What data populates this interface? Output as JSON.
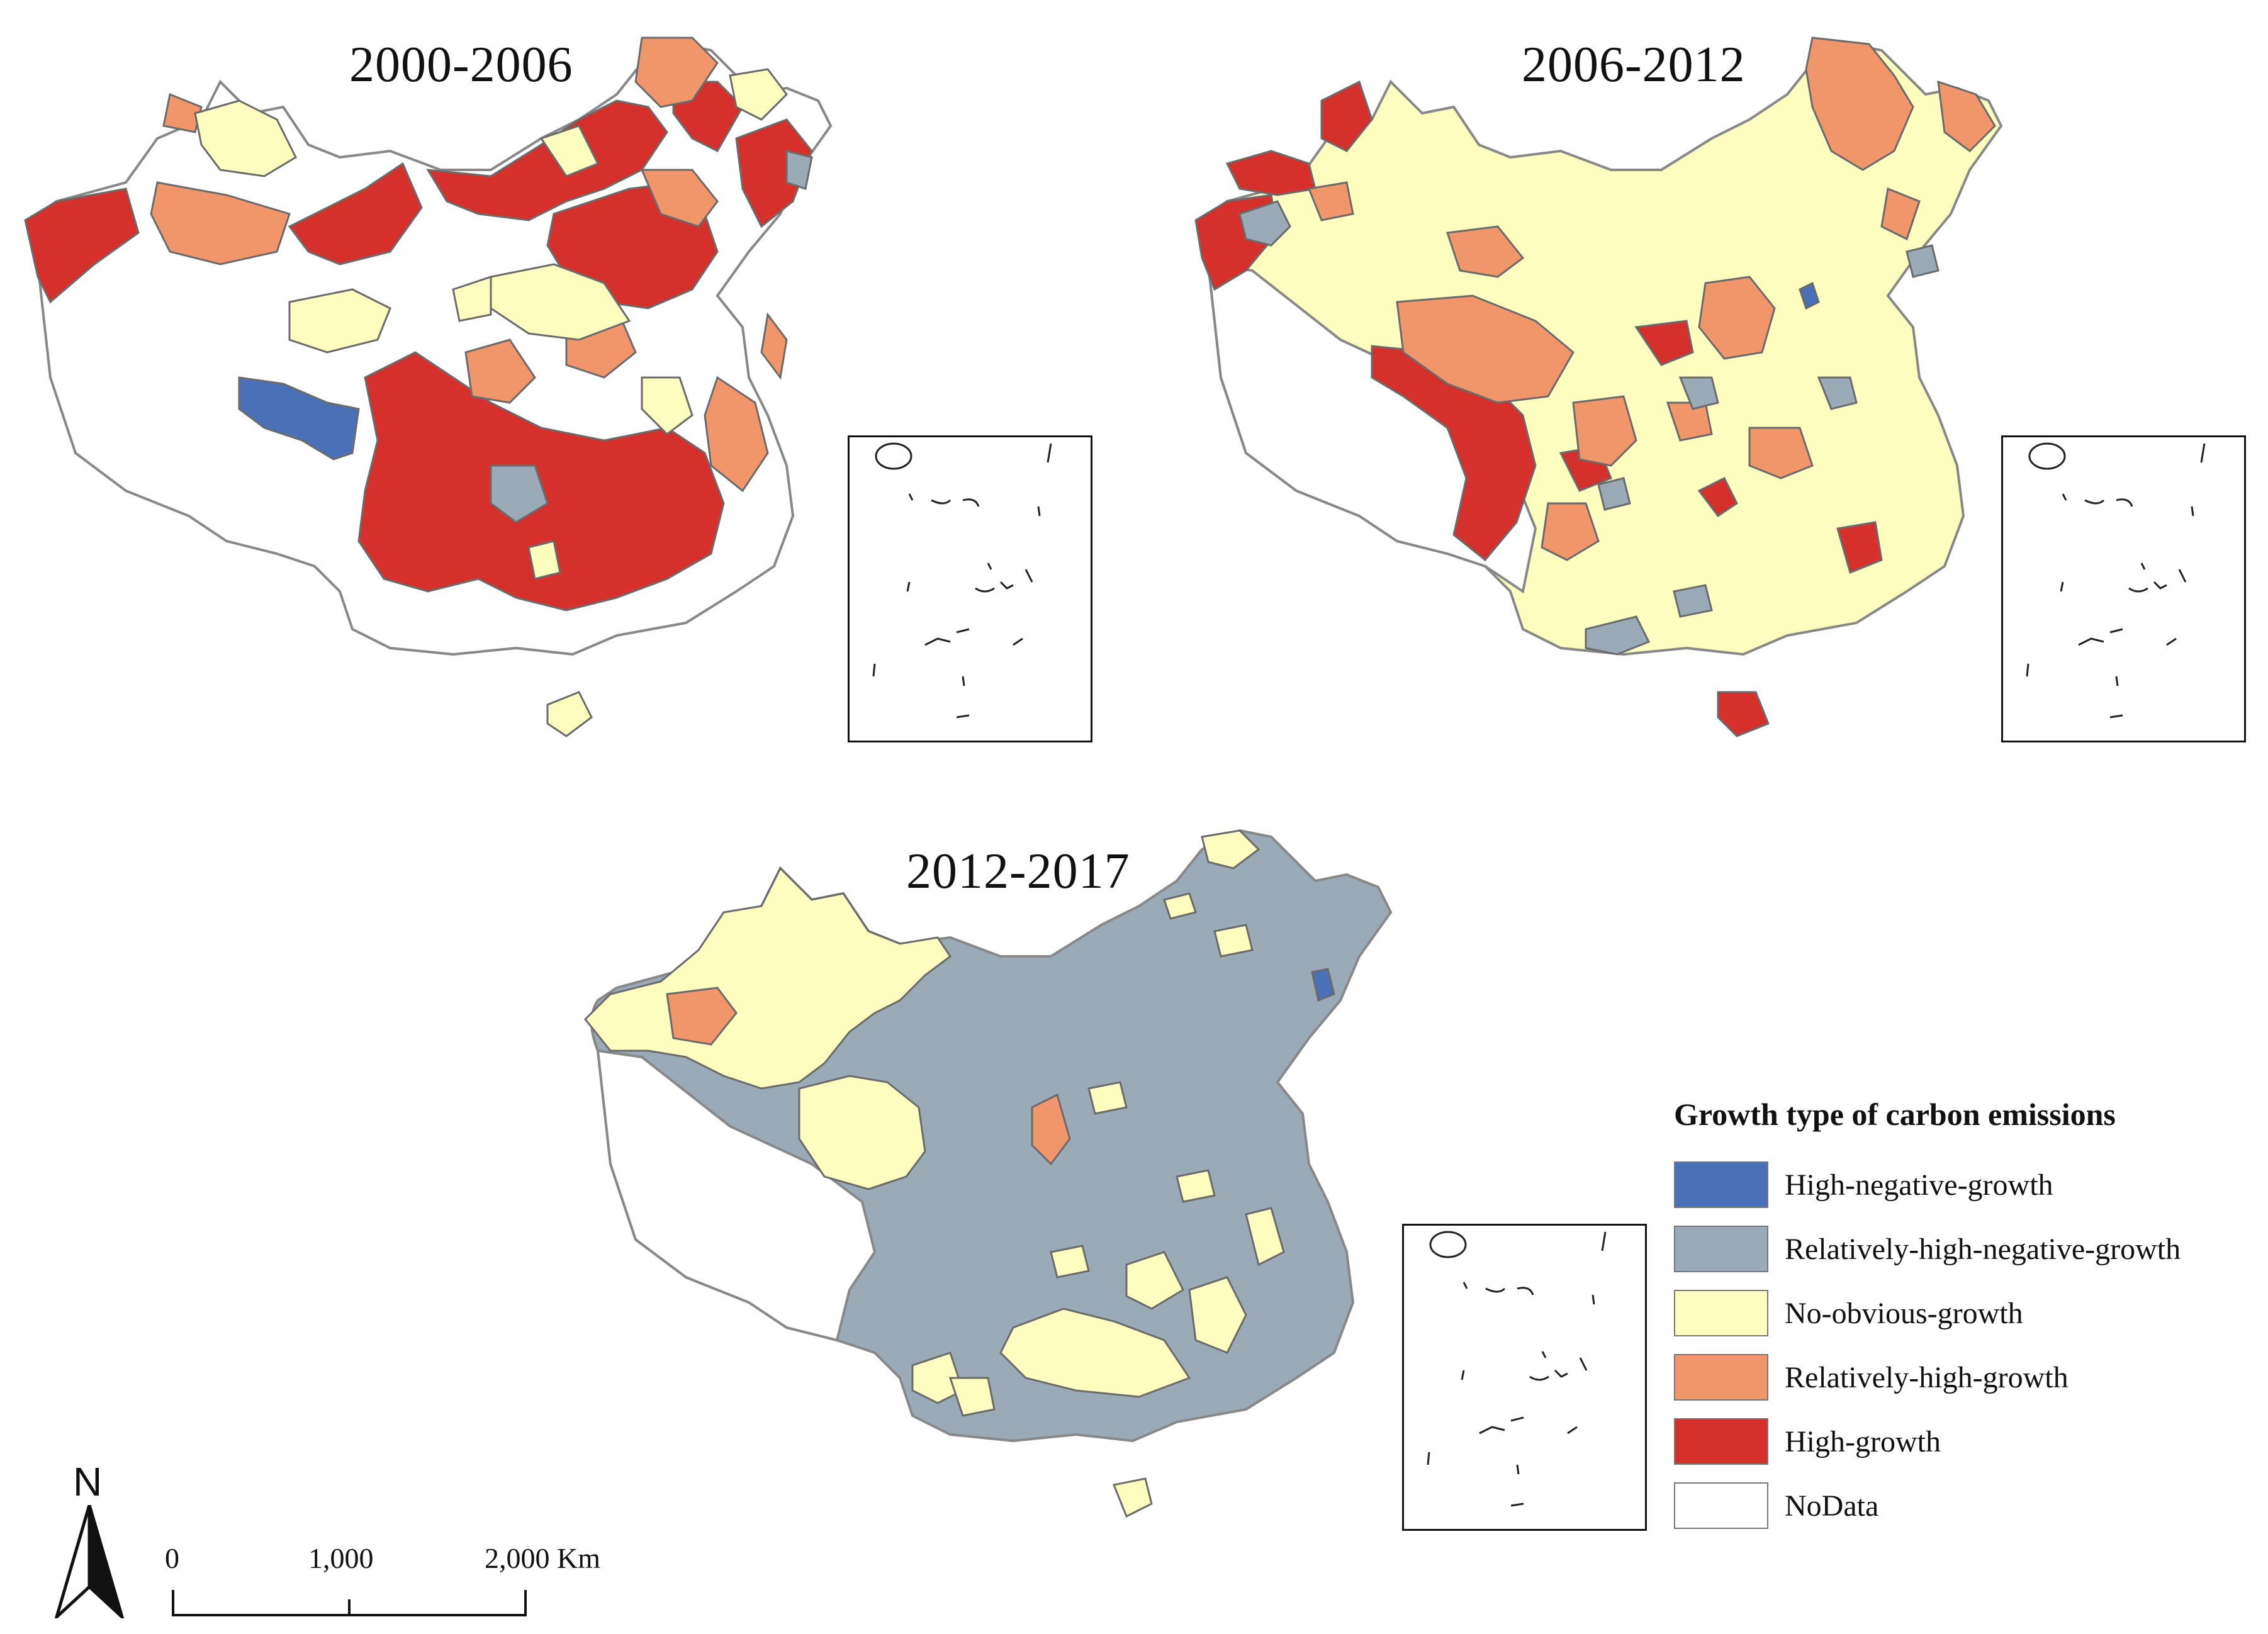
{
  "panels": [
    {
      "title": "2000-2006"
    },
    {
      "title": "2006-2012"
    },
    {
      "title": "2012-2017"
    }
  ],
  "legend": {
    "title": "Growth type of carbon emissions",
    "items": [
      {
        "label": "High-negative-growth",
        "color": "#4a70b8"
      },
      {
        "label": "Relatively-high-negative-growth",
        "color": "#9aaab7"
      },
      {
        "label": "No-obvious-growth",
        "color": "#fdfdc0"
      },
      {
        "label": "Relatively-high-growth",
        "color": "#f1956a"
      },
      {
        "label": "High-growth",
        "color": "#d5302c"
      },
      {
        "label": "NoData",
        "color": "#ffffff"
      }
    ]
  },
  "scale_bar": {
    "ticks": [
      "0",
      "1,000",
      "2,000 Km"
    ]
  },
  "north_arrow": {
    "label": "N"
  }
}
